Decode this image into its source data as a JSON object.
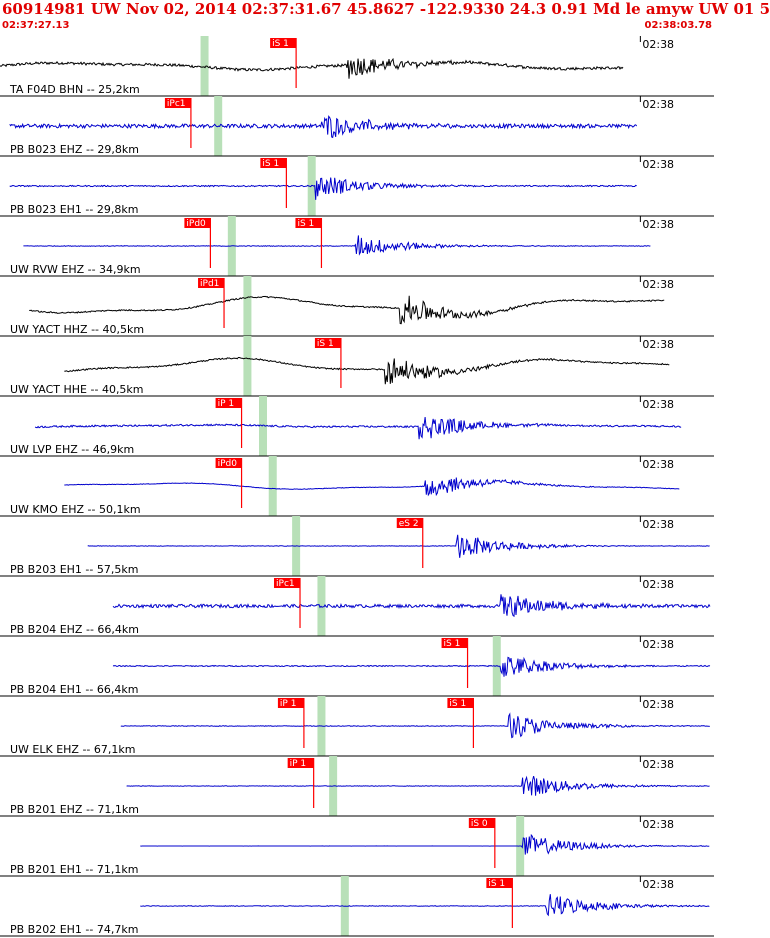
{
  "header": {
    "title": "60914981 UW Nov 02, 2014 02:37:31.67    45.8627 -122.9330 24.3 0.91 Md le amyw UW 01   5",
    "time_start": "02:37:27.13",
    "time_end": "02:38:03.78"
  },
  "colors": {
    "title": "#e00000",
    "pick": "#ff0000",
    "marker": "#b8e0b8",
    "trace_blue": "#0000cc",
    "trace_black": "#000000",
    "separator": "#000000"
  },
  "chart_data": {
    "type": "line",
    "title": "",
    "x_range_s": [
      0,
      36.65
    ],
    "tick_label": "02:38",
    "tick_time_s": 32.87,
    "traces": [
      {
        "label": "TA F04D BHN -- 25,2km",
        "color": "#000000",
        "trace_range": [
          0,
          32.0
        ],
        "amp": 0.45,
        "noise": 0.25,
        "wave": 0.35,
        "event_t": 17.8,
        "marker_t": 10.5,
        "picks": [
          {
            "label": "iS 1",
            "t": 15.2
          }
        ]
      },
      {
        "label": "PB B023 EHZ -- 29,8km",
        "color": "#0000cc",
        "trace_range": [
          0.5,
          32.7
        ],
        "amp": 0.45,
        "noise": 0.35,
        "wave": 0.0,
        "event_t": 16.5,
        "marker_t": 11.2,
        "picks": [
          {
            "label": "iPc1",
            "t": 9.8
          }
        ]
      },
      {
        "label": "PB B023 EH1 -- 29,8km",
        "color": "#0000cc",
        "trace_range": [
          0.5,
          32.7
        ],
        "amp": 0.45,
        "noise": 0.12,
        "wave": 0.0,
        "event_t": 16.2,
        "marker_t": 16.0,
        "picks": [
          {
            "label": "iS 1",
            "t": 14.7
          }
        ]
      },
      {
        "label": "UW RVW EHZ -- 34,9km",
        "color": "#0000cc",
        "trace_range": [
          1.2,
          33.4
        ],
        "amp": 0.4,
        "noise": 0.06,
        "wave": 0.0,
        "event_t": 18.2,
        "marker_t": 11.9,
        "picks": [
          {
            "label": "iPd0",
            "t": 10.8
          },
          {
            "label": "iS 1",
            "t": 16.5
          }
        ]
      },
      {
        "label": "UW YACT HHZ -- 40,5km",
        "color": "#000000",
        "trace_range": [
          1.5,
          34.1
        ],
        "amp": 0.55,
        "noise": 0.1,
        "wave": 0.7,
        "event_t": 20.5,
        "marker_t": 12.7,
        "picks": [
          {
            "label": "iPd1",
            "t": 11.5
          }
        ]
      },
      {
        "label": "UW YACT HHE -- 40,5km",
        "color": "#000000",
        "trace_range": [
          3.3,
          34.4
        ],
        "amp": 0.55,
        "noise": 0.1,
        "wave": 0.6,
        "event_t": 19.7,
        "marker_t": 12.7,
        "picks": [
          {
            "label": "iS 1",
            "t": 17.5
          }
        ]
      },
      {
        "label": "UW LVP EHZ -- 46,9km",
        "color": "#0000cc",
        "trace_range": [
          1.8,
          35.0
        ],
        "amp": 0.5,
        "noise": 0.15,
        "wave": 0.1,
        "event_t": 21.5,
        "marker_t": 13.5,
        "picks": [
          {
            "label": "iP 1",
            "t": 12.4
          }
        ]
      },
      {
        "label": "UW KMO EHZ -- 50,1km",
        "color": "#0000cc",
        "trace_range": [
          3.3,
          34.9
        ],
        "amp": 0.45,
        "noise": 0.05,
        "wave": 0.35,
        "event_t": 21.8,
        "marker_t": 14.0,
        "picks": [
          {
            "label": "iPd0",
            "t": 12.4
          }
        ]
      },
      {
        "label": "PB B203 EH1 -- 57,5km",
        "color": "#0000cc",
        "trace_range": [
          4.5,
          36.5
        ],
        "amp": 0.45,
        "noise": 0.04,
        "wave": 0.0,
        "event_t": 23.4,
        "marker_t": 15.2,
        "picks": [
          {
            "label": "eS 2",
            "t": 21.7
          }
        ]
      },
      {
        "label": "PB B204 EHZ -- 66,4km",
        "color": "#0000cc",
        "trace_range": [
          5.8,
          37.8
        ],
        "amp": 0.45,
        "noise": 0.3,
        "wave": 0.0,
        "event_t": 25.7,
        "marker_t": 16.5,
        "picks": [
          {
            "label": "iPc1",
            "t": 15.4
          }
        ]
      },
      {
        "label": "PB B204 EH1 -- 66,4km",
        "color": "#0000cc",
        "trace_range": [
          5.8,
          37.8
        ],
        "amp": 0.45,
        "noise": 0.1,
        "wave": 0.0,
        "event_t": 25.7,
        "marker_t": 25.5,
        "picks": [
          {
            "label": "iS 1",
            "t": 24.0
          }
        ]
      },
      {
        "label": "UW ELK EHZ -- 67,1km",
        "color": "#0000cc",
        "trace_range": [
          6.2,
          37.8
        ],
        "amp": 0.45,
        "noise": 0.06,
        "wave": 0.0,
        "event_t": 26.1,
        "marker_t": 16.5,
        "picks": [
          {
            "label": "iP 1",
            "t": 15.6
          },
          {
            "label": "iS 1",
            "t": 24.3
          }
        ]
      },
      {
        "label": "PB B201 EHZ -- 71,1km",
        "color": "#0000cc",
        "trace_range": [
          6.5,
          38.0
        ],
        "amp": 0.45,
        "noise": 0.04,
        "wave": 0.0,
        "event_t": 26.8,
        "marker_t": 17.1,
        "picks": [
          {
            "label": "iP 1",
            "t": 16.1
          }
        ]
      },
      {
        "label": "PB B201 EH1 -- 71,1km",
        "color": "#0000cc",
        "trace_range": [
          7.2,
          38.2
        ],
        "amp": 0.45,
        "noise": 0.01,
        "wave": 0.0,
        "event_t": 26.8,
        "marker_t": 26.7,
        "picks": [
          {
            "label": "iS 0",
            "t": 25.4
          }
        ]
      },
      {
        "label": "PB B202 EH1 -- 74,7km",
        "color": "#0000cc",
        "trace_range": [
          7.2,
          38.3
        ],
        "amp": 0.45,
        "noise": 0.05,
        "wave": 0.0,
        "event_t": 28.0,
        "marker_t": 17.7,
        "picks": [
          {
            "label": "iS 1",
            "t": 26.3
          }
        ]
      }
    ]
  }
}
